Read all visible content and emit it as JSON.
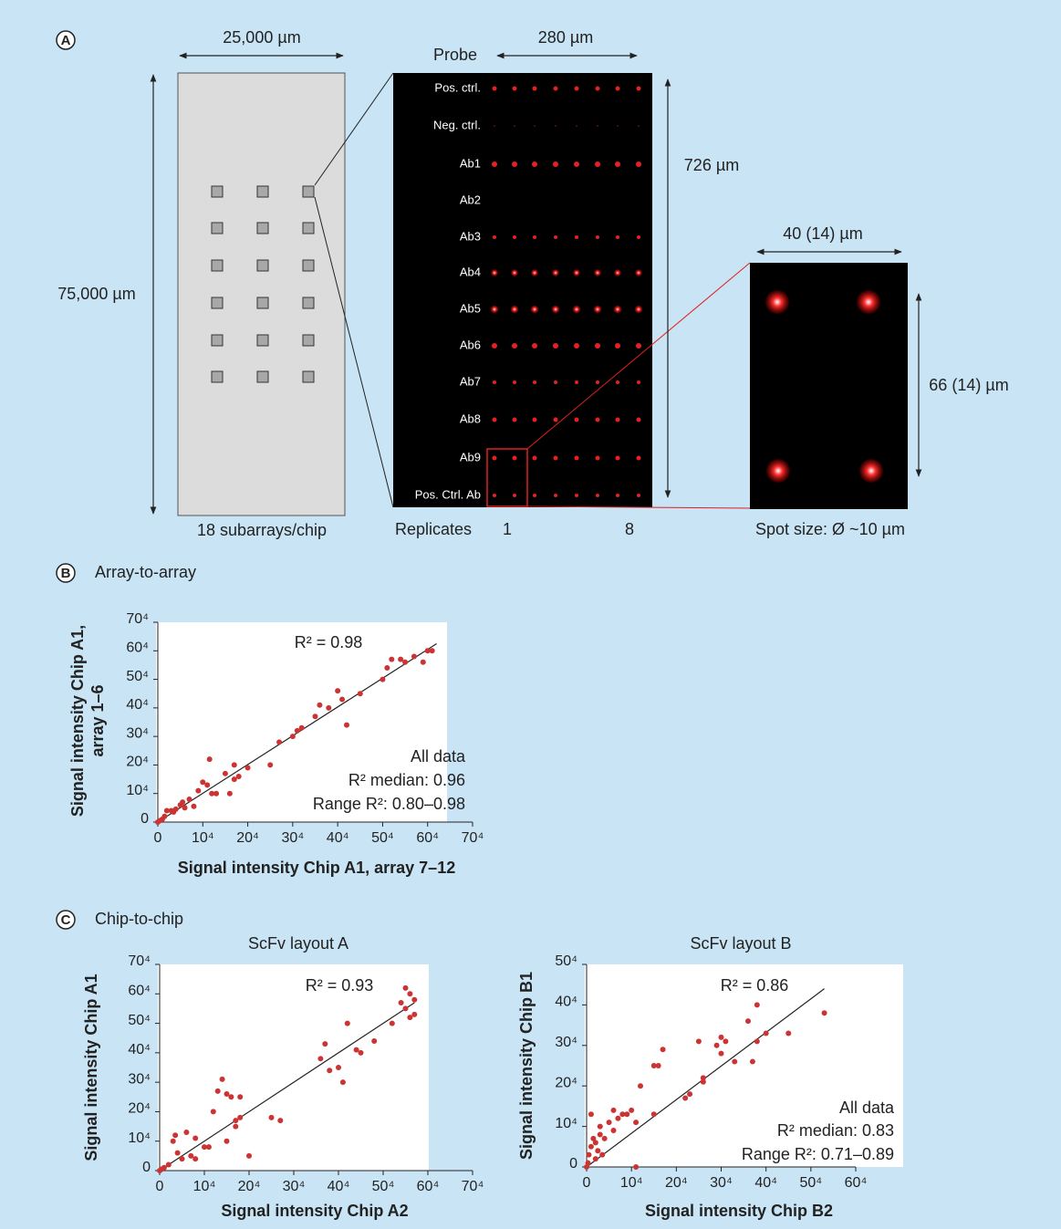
{
  "panel_a": {
    "label": "A",
    "chip_width": "25,000 µm",
    "chip_height": "75,000 µm",
    "chip_caption": "18 subarrays/chip",
    "probe_header": "Probe",
    "array_width": "280 µm",
    "array_height": "726 µm",
    "probes": [
      "Pos. ctrl.",
      "Neg. ctrl.",
      "Ab1",
      "Ab2",
      "Ab3",
      "Ab4",
      "Ab5",
      "Ab6",
      "Ab7",
      "Ab8",
      "Ab9",
      "Pos. Ctrl. Ab"
    ],
    "replicates_label": "Replicates",
    "replicate_first": 1,
    "replicate_last": 8,
    "spot_width": "40 (14) µm",
    "spot_height": "66 (14) µm",
    "spot_caption": "Spot size: Ø ~10 µm"
  },
  "panel_b": {
    "label": "B",
    "title": "Array-to-array"
  },
  "panel_c": {
    "label": "C",
    "title": "Chip-to-chip"
  },
  "chart_data": [
    {
      "type": "scatter",
      "xlabel": "Signal intensity Chip A1, array 7–12",
      "ylabel": [
        "Signal intensity Chip A1,",
        "array 1–6"
      ],
      "color": "#cc3333",
      "x": [
        0,
        0.5,
        1,
        1.5,
        2,
        3,
        3.5,
        4,
        5,
        5.5,
        6,
        7,
        8,
        9,
        10,
        11,
        11.5,
        12,
        13,
        15,
        16,
        17,
        17,
        18,
        20,
        25,
        27,
        30,
        31,
        32,
        35,
        36,
        38,
        40,
        41,
        42,
        45,
        50,
        51,
        52,
        54,
        55,
        57,
        59,
        60,
        61
      ],
      "y": [
        0,
        0.5,
        1,
        2,
        4,
        4,
        3.5,
        4.5,
        6,
        7,
        5,
        8,
        5.5,
        11,
        14,
        13,
        22,
        10,
        10,
        17,
        10,
        20,
        15,
        16,
        19,
        20,
        28,
        30,
        32,
        33,
        37,
        41,
        40,
        46,
        43,
        34,
        45,
        50,
        54,
        57,
        57,
        56,
        58,
        56,
        60,
        60
      ],
      "xlim": [
        0,
        70
      ],
      "ylim": [
        0,
        70
      ],
      "xticks": [
        0,
        {
          "value": 10,
          "label": "10⁴"
        },
        {
          "value": 20,
          "label": "20⁴"
        },
        {
          "value": 30,
          "label": "30⁴"
        },
        {
          "value": 40,
          "label": "40⁴"
        },
        {
          "value": 50,
          "label": "50⁴"
        },
        {
          "value": 60,
          "label": "60⁴"
        },
        {
          "value": 70,
          "label": "70⁴"
        }
      ],
      "yticks": [
        0,
        {
          "value": 10,
          "label": "10⁴"
        },
        {
          "value": 20,
          "label": "20⁴"
        },
        {
          "value": 30,
          "label": "30⁴"
        },
        {
          "value": 40,
          "label": "40⁴"
        },
        {
          "value": 50,
          "label": "50⁴"
        },
        {
          "value": 60,
          "label": "60⁴"
        },
        {
          "value": 70,
          "label": "70⁴"
        }
      ],
      "fit": {
        "x": [
          0,
          62
        ],
        "y": [
          0,
          62.5
        ]
      },
      "fit_label": "R² = 0.98",
      "summary": [
        "All data",
        "R² median: 0.96",
        "Range R²: 0.80–0.98"
      ]
    },
    {
      "type": "scatter",
      "title": "ScFv layout A",
      "xlabel": "Signal intensity Chip A2",
      "ylabel": [
        "Signal intensity Chip A1"
      ],
      "color": "#cc3333",
      "x": [
        0,
        0.5,
        1,
        2,
        3,
        3.5,
        4,
        5,
        6,
        7,
        8,
        8,
        10,
        11,
        12,
        13,
        14,
        15,
        15,
        16,
        17,
        17,
        18,
        18,
        20,
        25,
        27,
        36,
        37,
        38,
        40,
        41,
        42,
        44,
        45,
        48,
        52,
        54,
        55,
        55,
        56,
        56,
        57,
        57
      ],
      "y": [
        0,
        0.5,
        1,
        2,
        10,
        12,
        6,
        4,
        13,
        5,
        11,
        4,
        8,
        8,
        20,
        27,
        31,
        26,
        10,
        25,
        17,
        15,
        25,
        18,
        5,
        18,
        17,
        38,
        43,
        34,
        35,
        30,
        50,
        41,
        40,
        44,
        50,
        57,
        62,
        55,
        52,
        60,
        58,
        53
      ],
      "xlim": [
        0,
        70
      ],
      "ylim": [
        0,
        70
      ],
      "xticks": [
        0,
        {
          "value": 10,
          "label": "10⁴"
        },
        {
          "value": 20,
          "label": "20⁴"
        },
        {
          "value": 30,
          "label": "30⁴"
        },
        {
          "value": 40,
          "label": "40⁴"
        },
        {
          "value": 50,
          "label": "50⁴"
        },
        {
          "value": 60,
          "label": "60⁴"
        },
        {
          "value": 70,
          "label": "70⁴"
        }
      ],
      "yticks": [
        0,
        {
          "value": 10,
          "label": "10⁴"
        },
        {
          "value": 20,
          "label": "20⁴"
        },
        {
          "value": 30,
          "label": "30⁴"
        },
        {
          "value": 40,
          "label": "40⁴"
        },
        {
          "value": 50,
          "label": "50⁴"
        },
        {
          "value": 60,
          "label": "60⁴"
        },
        {
          "value": 70,
          "label": "70⁴"
        }
      ],
      "fit": {
        "x": [
          0,
          57
        ],
        "y": [
          0,
          57
        ]
      },
      "fit_label": "R² = 0.93"
    },
    {
      "type": "scatter",
      "title": "ScFv layout B",
      "xlabel": "Signal intensity Chip B2",
      "ylabel": [
        "Signal intensity Chip B1"
      ],
      "color": "#cc3333",
      "x": [
        0,
        0.3,
        0.5,
        1,
        1,
        1.5,
        2,
        2,
        2.5,
        3,
        3,
        3.5,
        4,
        5,
        6,
        6,
        7,
        8,
        9,
        10,
        11,
        11,
        12,
        15,
        15,
        16,
        17,
        22,
        23,
        25,
        26,
        26,
        29,
        30,
        30,
        31,
        33,
        36,
        37,
        38,
        38,
        40,
        45,
        53
      ],
      "y": [
        0,
        1,
        3,
        5,
        13,
        7,
        2,
        6,
        4,
        8,
        10,
        3,
        7,
        11,
        9,
        14,
        12,
        13,
        13,
        14,
        0,
        11,
        20,
        25,
        13,
        25,
        29,
        17,
        18,
        31,
        21,
        22,
        30,
        32,
        28,
        31,
        26,
        36,
        26,
        40,
        31,
        33,
        33,
        38
      ],
      "xlim": [
        0,
        60
      ],
      "ylim": [
        0,
        50
      ],
      "xticks": [
        0,
        {
          "value": 10,
          "label": "10⁴"
        },
        {
          "value": 20,
          "label": "20⁴"
        },
        {
          "value": 30,
          "label": "30⁴"
        },
        {
          "value": 40,
          "label": "40⁴"
        },
        {
          "value": 50,
          "label": "50⁴"
        },
        {
          "value": 60,
          "label": "60⁴"
        }
      ],
      "yticks": [
        0,
        {
          "value": 10,
          "label": "10⁴"
        },
        {
          "value": 20,
          "label": "20⁴"
        },
        {
          "value": 30,
          "label": "30⁴"
        },
        {
          "value": 40,
          "label": "40⁴"
        },
        {
          "value": 50,
          "label": "50⁴"
        }
      ],
      "fit": {
        "x": [
          0,
          53
        ],
        "y": [
          0,
          44
        ]
      },
      "fit_label": "R² = 0.86",
      "summary": [
        "All data",
        "R² median: 0.83",
        "Range R²: 0.71–0.89"
      ]
    }
  ]
}
